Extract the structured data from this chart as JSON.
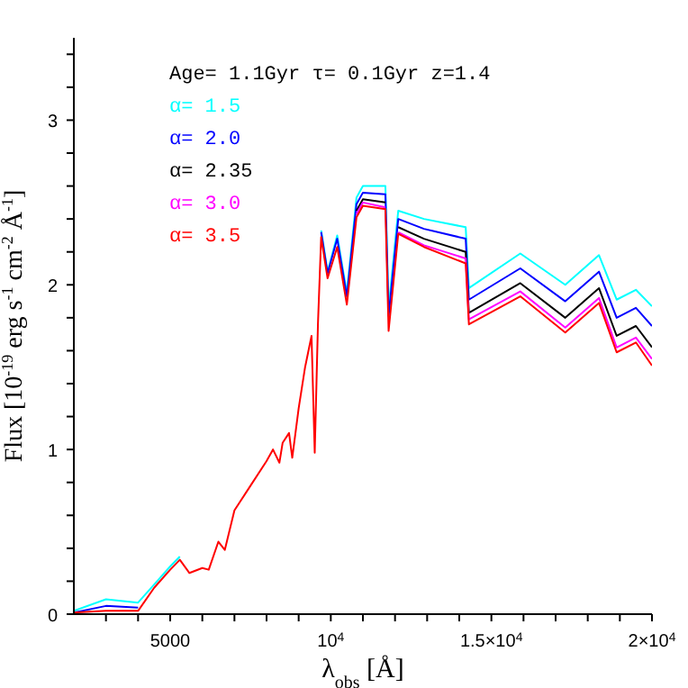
{
  "chart_data": {
    "type": "line",
    "xlabel": "λ$_{obs}$  [Å]",
    "ylabel": "Flux [10$^{-19}$ erg s$^{-1}$ cm$^{-2}$ Å$^{-1}$]",
    "annotations": [
      "Age= 1.1Gyr τ= 0.1Gyr z=1.4"
    ],
    "x": [
      2000,
      3000,
      4000,
      4500,
      5000,
      5300,
      5600,
      6000,
      6200,
      6500,
      6700,
      7000,
      7500,
      8000,
      8200,
      8400,
      8500,
      8700,
      8800,
      9000,
      9200,
      9400,
      9500,
      9600,
      9700,
      9900,
      10200,
      10500,
      10800,
      11000,
      11700,
      11800,
      12100,
      12900,
      14200,
      14300,
      15900,
      17300,
      18350,
      18900,
      19500,
      20000
    ],
    "series": [
      {
        "name": "α= 1.5",
        "color": "#00ffff",
        "values": [
          0.02,
          0.09,
          0.07,
          0.18,
          0.29,
          0.35,
          null,
          null,
          null,
          null,
          null,
          null,
          null,
          null,
          null,
          null,
          null,
          null,
          null,
          null,
          null,
          null,
          null,
          null,
          2.33,
          2.08,
          2.3,
          1.95,
          2.53,
          2.6,
          2.6,
          1.86,
          2.45,
          2.4,
          2.35,
          1.98,
          2.19,
          2.0,
          2.18,
          1.91,
          1.97,
          1.87
        ]
      },
      {
        "name": "α= 2.0",
        "color": "#0000ff",
        "values": [
          0.01,
          0.05,
          0.04,
          null,
          null,
          null,
          null,
          null,
          null,
          null,
          null,
          null,
          null,
          null,
          null,
          null,
          null,
          null,
          null,
          null,
          null,
          null,
          null,
          null,
          2.32,
          2.07,
          2.28,
          1.93,
          2.49,
          2.56,
          2.55,
          1.81,
          2.4,
          2.34,
          2.28,
          1.91,
          2.1,
          1.9,
          2.08,
          1.8,
          1.86,
          1.75
        ]
      },
      {
        "name": "α= 2.35",
        "color": "#000000",
        "values": [
          null,
          null,
          null,
          null,
          null,
          null,
          null,
          null,
          null,
          null,
          null,
          null,
          null,
          null,
          null,
          null,
          null,
          null,
          null,
          null,
          null,
          null,
          null,
          null,
          null,
          null,
          null,
          null,
          2.45,
          2.52,
          2.5,
          null,
          2.35,
          2.28,
          2.2,
          1.83,
          2.01,
          1.8,
          1.98,
          1.69,
          1.75,
          1.62
        ]
      },
      {
        "name": "α= 3.0",
        "color": "#ff00ff",
        "values": [
          null,
          null,
          null,
          null,
          null,
          null,
          null,
          null,
          null,
          null,
          null,
          null,
          null,
          null,
          null,
          null,
          null,
          null,
          null,
          null,
          null,
          null,
          null,
          null,
          null,
          null,
          null,
          null,
          2.43,
          2.5,
          2.47,
          null,
          2.32,
          2.24,
          2.16,
          1.79,
          1.96,
          1.74,
          1.92,
          1.62,
          1.68,
          1.55
        ]
      },
      {
        "name": "α= 3.5",
        "color": "#ff0000",
        "values": [
          0.01,
          0.02,
          0.02,
          0.16,
          0.27,
          0.33,
          0.25,
          0.28,
          0.27,
          0.44,
          0.39,
          0.63,
          0.78,
          0.93,
          1.0,
          0.92,
          1.04,
          1.1,
          0.95,
          1.25,
          1.5,
          1.69,
          0.98,
          1.76,
          2.29,
          2.04,
          2.23,
          1.88,
          2.41,
          2.48,
          2.46,
          1.72,
          2.31,
          2.23,
          2.13,
          1.76,
          1.93,
          1.71,
          1.89,
          1.59,
          1.65,
          1.51
        ]
      }
    ],
    "xlim": [
      2000,
      20000
    ],
    "xticks": [
      {
        "value": 3000,
        "label": null
      },
      {
        "value": 4000,
        "label": null
      },
      5000,
      {
        "value": 6000,
        "label": null
      },
      {
        "value": 7000,
        "label": null
      },
      {
        "value": 8000,
        "label": null
      },
      {
        "value": 9000,
        "label": null
      },
      {
        "value": 10000,
        "label": "10$^{4}$"
      },
      {
        "value": 11000,
        "label": null
      },
      {
        "value": 12000,
        "label": null
      },
      {
        "value": 13000,
        "label": null
      },
      {
        "value": 14000,
        "label": null
      },
      {
        "value": 15000,
        "label": "1.5×10$^{4}$"
      },
      {
        "value": 16000,
        "label": null
      },
      {
        "value": 17000,
        "label": null
      },
      {
        "value": 18000,
        "label": null
      },
      {
        "value": 19000,
        "label": null
      },
      {
        "value": 20000,
        "label": "2×10$^{4}$"
      }
    ],
    "ylim": [
      0,
      3.5
    ],
    "yticks": [
      0,
      {
        "value": 0.2,
        "label": null
      },
      {
        "value": 0.4,
        "label": null
      },
      {
        "value": 0.6,
        "label": null
      },
      {
        "value": 0.8,
        "label": null
      },
      1,
      {
        "value": 1.2,
        "label": null
      },
      {
        "value": 1.4,
        "label": null
      },
      {
        "value": 1.6,
        "label": null
      },
      {
        "value": 1.8,
        "label": null
      },
      2,
      {
        "value": 2.2,
        "label": null
      },
      {
        "value": 2.4,
        "label": null
      },
      {
        "value": 2.6,
        "label": null
      },
      {
        "value": 2.8,
        "label": null
      },
      3,
      {
        "value": 3.2,
        "label": null
      },
      {
        "value": 3.4,
        "label": null
      }
    ],
    "grid": false,
    "legend": "top left",
    "marker": "none",
    "line_style": "solid"
  }
}
